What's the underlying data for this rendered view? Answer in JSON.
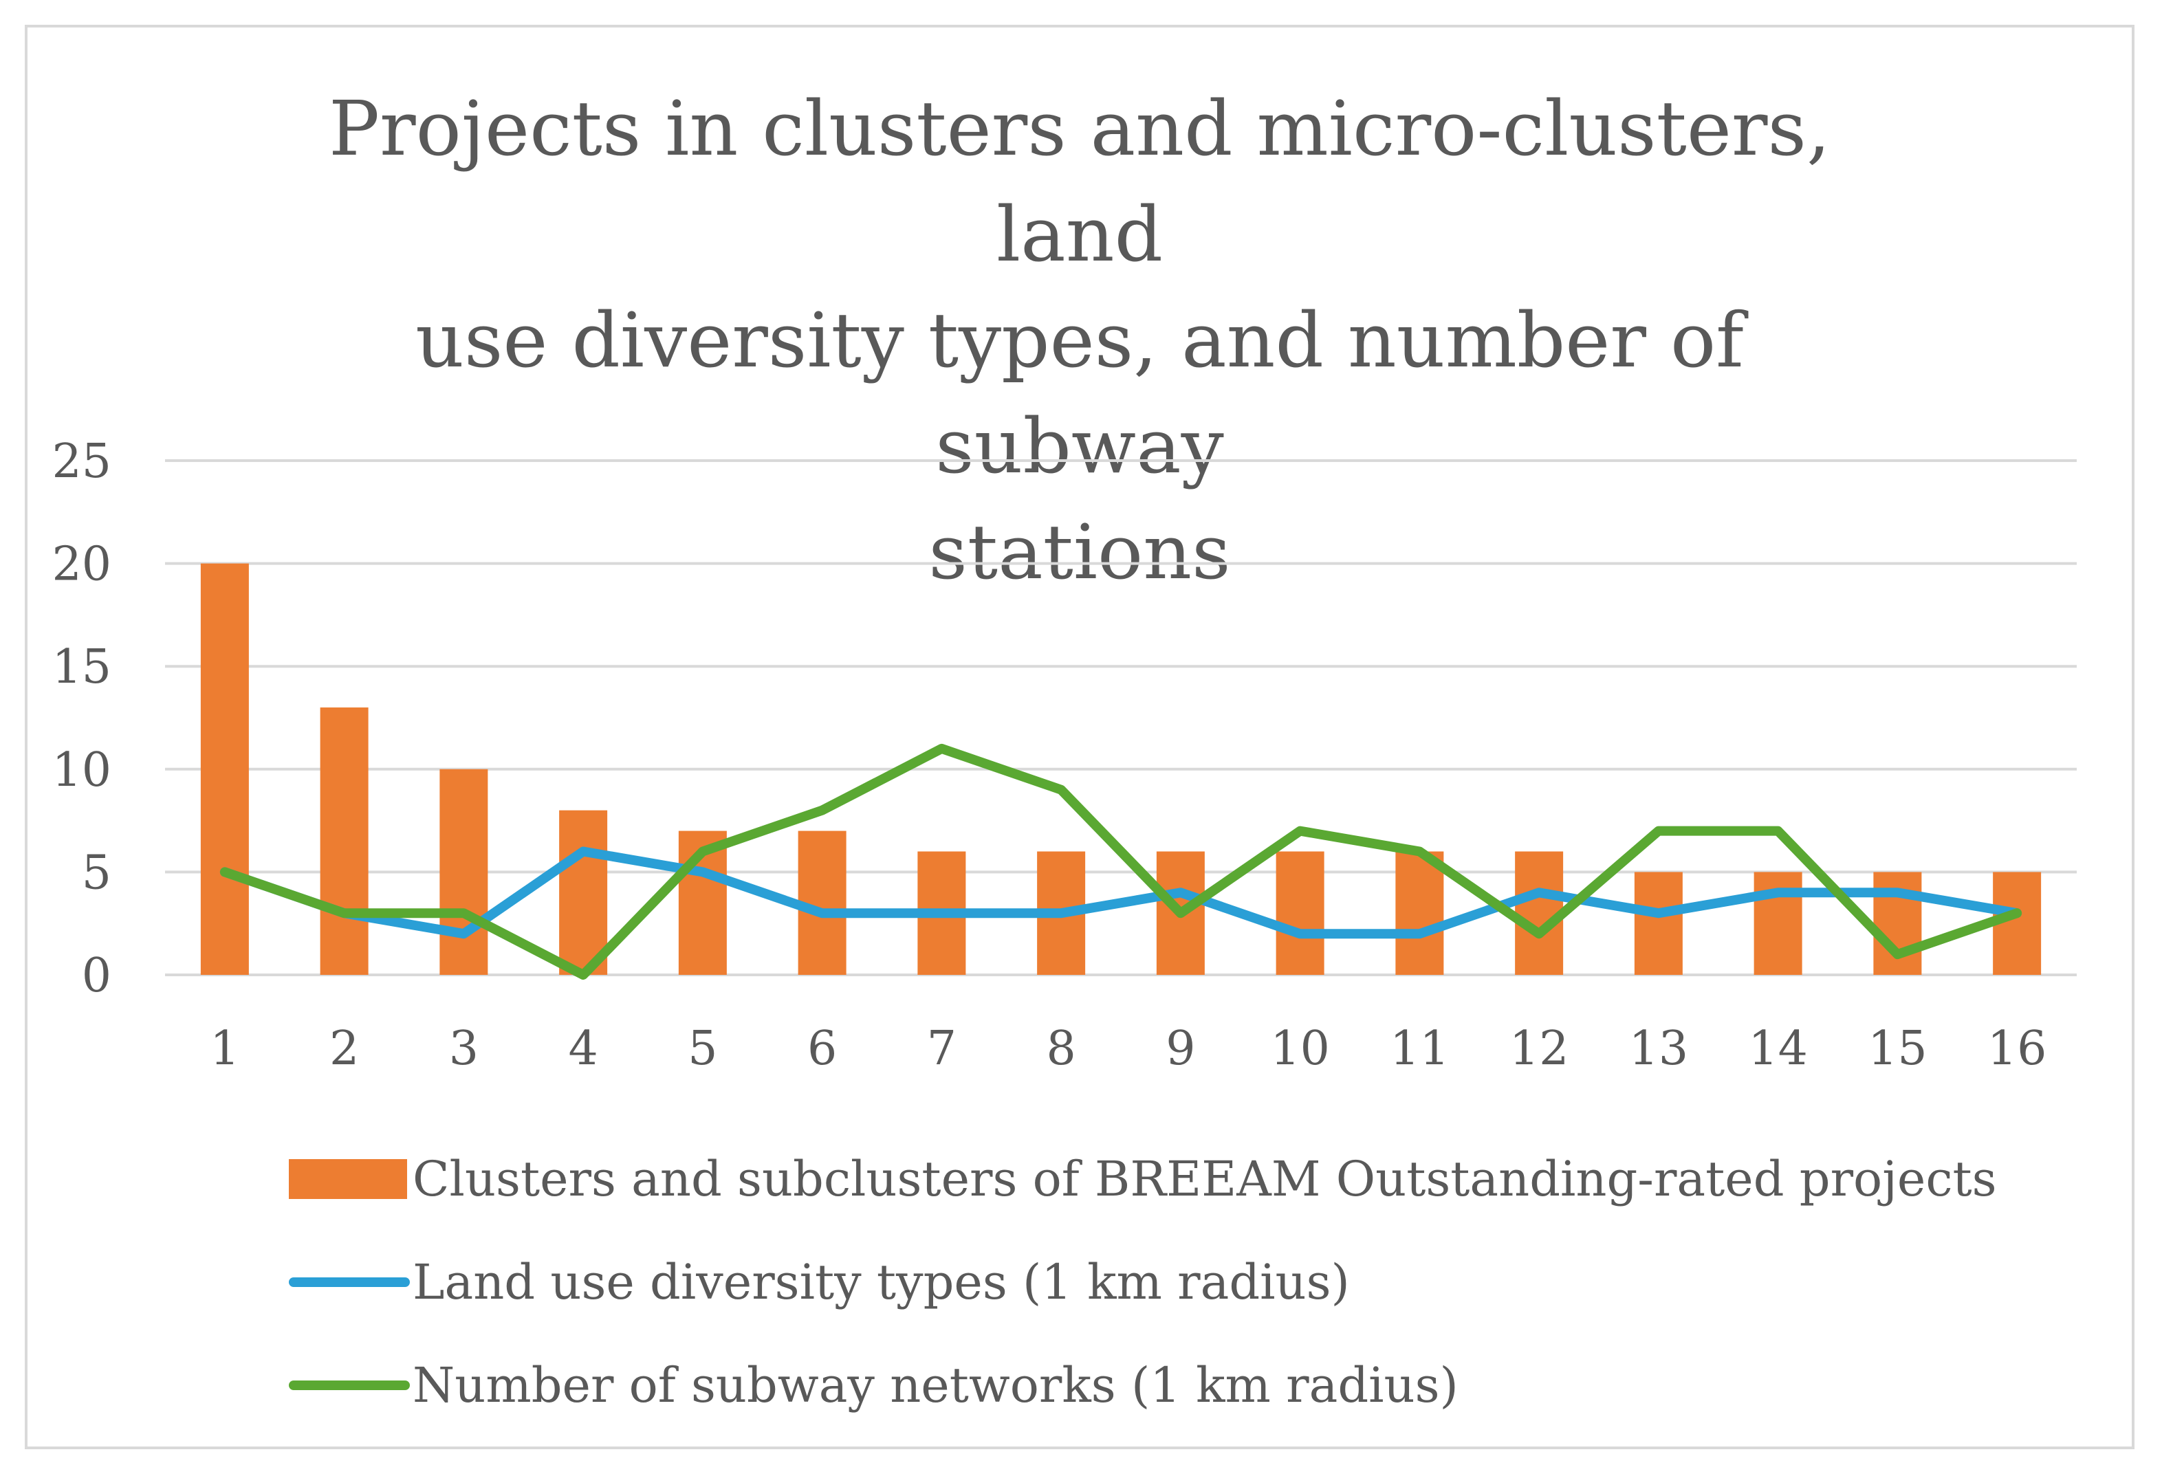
{
  "colors": {
    "bars": "#ed7d31",
    "line1": "#2a9fd6",
    "line2": "#5aa832",
    "grid": "#d9d9d9",
    "text": "#595959"
  },
  "chart_data": {
    "type": "bar+line",
    "title": "Projects in clusters and micro-clusters, land use diversity types, and number of subway stations",
    "title_lines": [
      "Projects in clusters and micro-clusters, land",
      "use diversity types, and number of subway",
      "stations"
    ],
    "categories": [
      "1",
      "2",
      "3",
      "4",
      "5",
      "6",
      "7",
      "8",
      "9",
      "10",
      "11",
      "12",
      "13",
      "14",
      "15",
      "16"
    ],
    "ylim": [
      0,
      25
    ],
    "yticks": [
      "0",
      "5",
      "10",
      "15",
      "20",
      "25"
    ],
    "grid": true,
    "legend_position": "bottom",
    "series": [
      {
        "name": "Clusters and subclusters of BREEAM Outstanding-rated projects",
        "type": "bar",
        "values": [
          20,
          13,
          10,
          8,
          7,
          7,
          6,
          6,
          6,
          6,
          6,
          6,
          5,
          5,
          5,
          5
        ]
      },
      {
        "name": "Land use diversity types (1 km radius)",
        "type": "line",
        "values": [
          5,
          3,
          2,
          6,
          5,
          3,
          3,
          3,
          4,
          2,
          2,
          4,
          3,
          4,
          4,
          3
        ]
      },
      {
        "name": "Number of subway networks (1 km radius)",
        "type": "line",
        "values": [
          5,
          3,
          3,
          0,
          6,
          8,
          11,
          9,
          3,
          7,
          6,
          2,
          7,
          7,
          1,
          3
        ]
      }
    ]
  }
}
